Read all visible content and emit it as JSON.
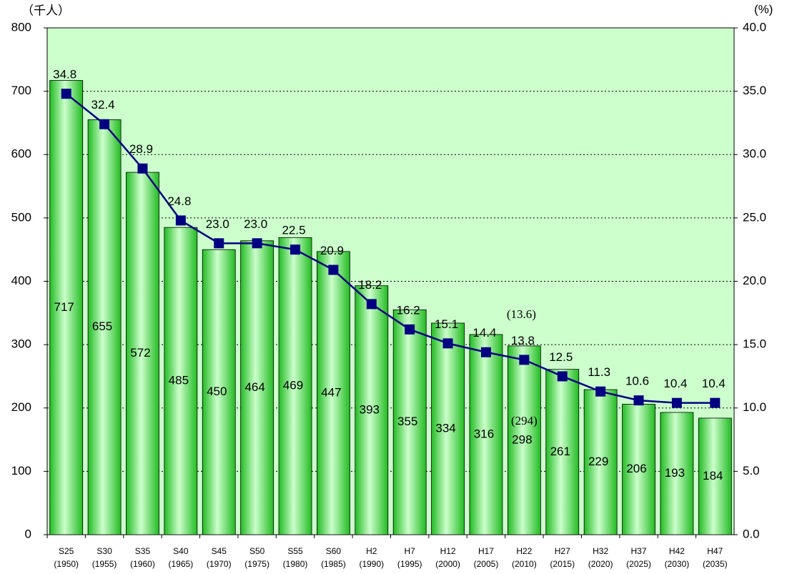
{
  "chart_data": {
    "type": "bar_line",
    "y_unit_label": "（千人）",
    "y2_unit_label": "(%)",
    "categories": [
      "S25",
      "S30",
      "S35",
      "S40",
      "S45",
      "S50",
      "S55",
      "S60",
      "H2",
      "H7",
      "H12",
      "H17",
      "H22",
      "H27",
      "H32",
      "H37",
      "H42",
      "H47"
    ],
    "category_years": [
      "(1950)",
      "(1955)",
      "(1960)",
      "(1965)",
      "(1970)",
      "(1975)",
      "(1980)",
      "(1985)",
      "(1990)",
      "(1995)",
      "(2000)",
      "(2005)",
      "(2010)",
      "(2015)",
      "(2020)",
      "(2025)",
      "(2030)",
      "(2035)"
    ],
    "series": [
      {
        "type": "bar",
        "color": "#33cc33",
        "values": [
          717,
          655,
          572,
          485,
          450,
          464,
          469,
          447,
          393,
          355,
          334,
          316,
          298,
          261,
          229,
          206,
          193,
          184
        ]
      },
      {
        "type": "line",
        "axis": "y2",
        "color": "#000080",
        "values": [
          34.8,
          32.4,
          28.9,
          24.8,
          23.0,
          23.0,
          22.5,
          20.9,
          18.2,
          16.2,
          15.1,
          14.4,
          13.8,
          12.5,
          11.3,
          10.6,
          10.4,
          10.4
        ],
        "value_labels": [
          "34.8",
          "32.4",
          "28.9",
          "24.8",
          "23.0",
          "23.0",
          "22.5",
          "20.9",
          "18.2",
          "16.2",
          "15.1",
          "14.4",
          "13.8",
          "12.5",
          "11.3",
          "10.6",
          "10.4",
          "10.4"
        ]
      }
    ],
    "annotations": [
      "(13.6)",
      "(294)"
    ],
    "ylim": [
      0,
      800
    ],
    "yticks": [
      0,
      100,
      200,
      300,
      400,
      500,
      600,
      700,
      800
    ],
    "y2lim": [
      0,
      40
    ],
    "y2ticks": [
      {
        "value": 0,
        "label": "0.0"
      },
      {
        "value": 5,
        "label": "5.0"
      },
      {
        "value": 10,
        "label": "10.0"
      },
      {
        "value": 15,
        "label": "15.0"
      },
      {
        "value": 20,
        "label": "20.0"
      },
      {
        "value": 25,
        "label": "25.0"
      },
      {
        "value": 30,
        "label": "30.0"
      },
      {
        "value": 35,
        "label": "35.0"
      },
      {
        "value": 40,
        "label": "40.0"
      }
    ],
    "grid": true,
    "background": "#ccffcc"
  }
}
